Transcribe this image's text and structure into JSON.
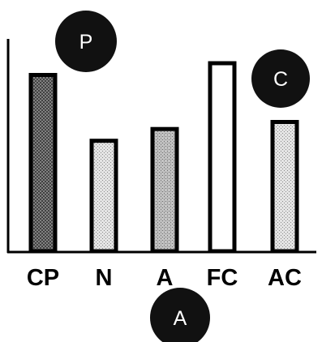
{
  "chart_data": {
    "type": "bar",
    "title": "",
    "xlabel": "",
    "ylabel": "",
    "categories": [
      "CP",
      "N",
      "A",
      "FC",
      "AC"
    ],
    "values": [
      75,
      47,
      52,
      80,
      55
    ],
    "ylim": [
      0,
      100
    ],
    "grid": false,
    "legend": "none",
    "bar_fills": [
      "dark-crosshatch",
      "light-stipple",
      "medium-stipple",
      "white",
      "light-stipple"
    ]
  },
  "badges": [
    {
      "letter": "P",
      "near": "top-left, above CP"
    },
    {
      "letter": "C",
      "near": "top-right, above AC"
    },
    {
      "letter": "A",
      "near": "bottom-center, below A label"
    }
  ],
  "colors": {
    "outline": "#000000",
    "badge": "#111111",
    "background": "#ffffff"
  }
}
